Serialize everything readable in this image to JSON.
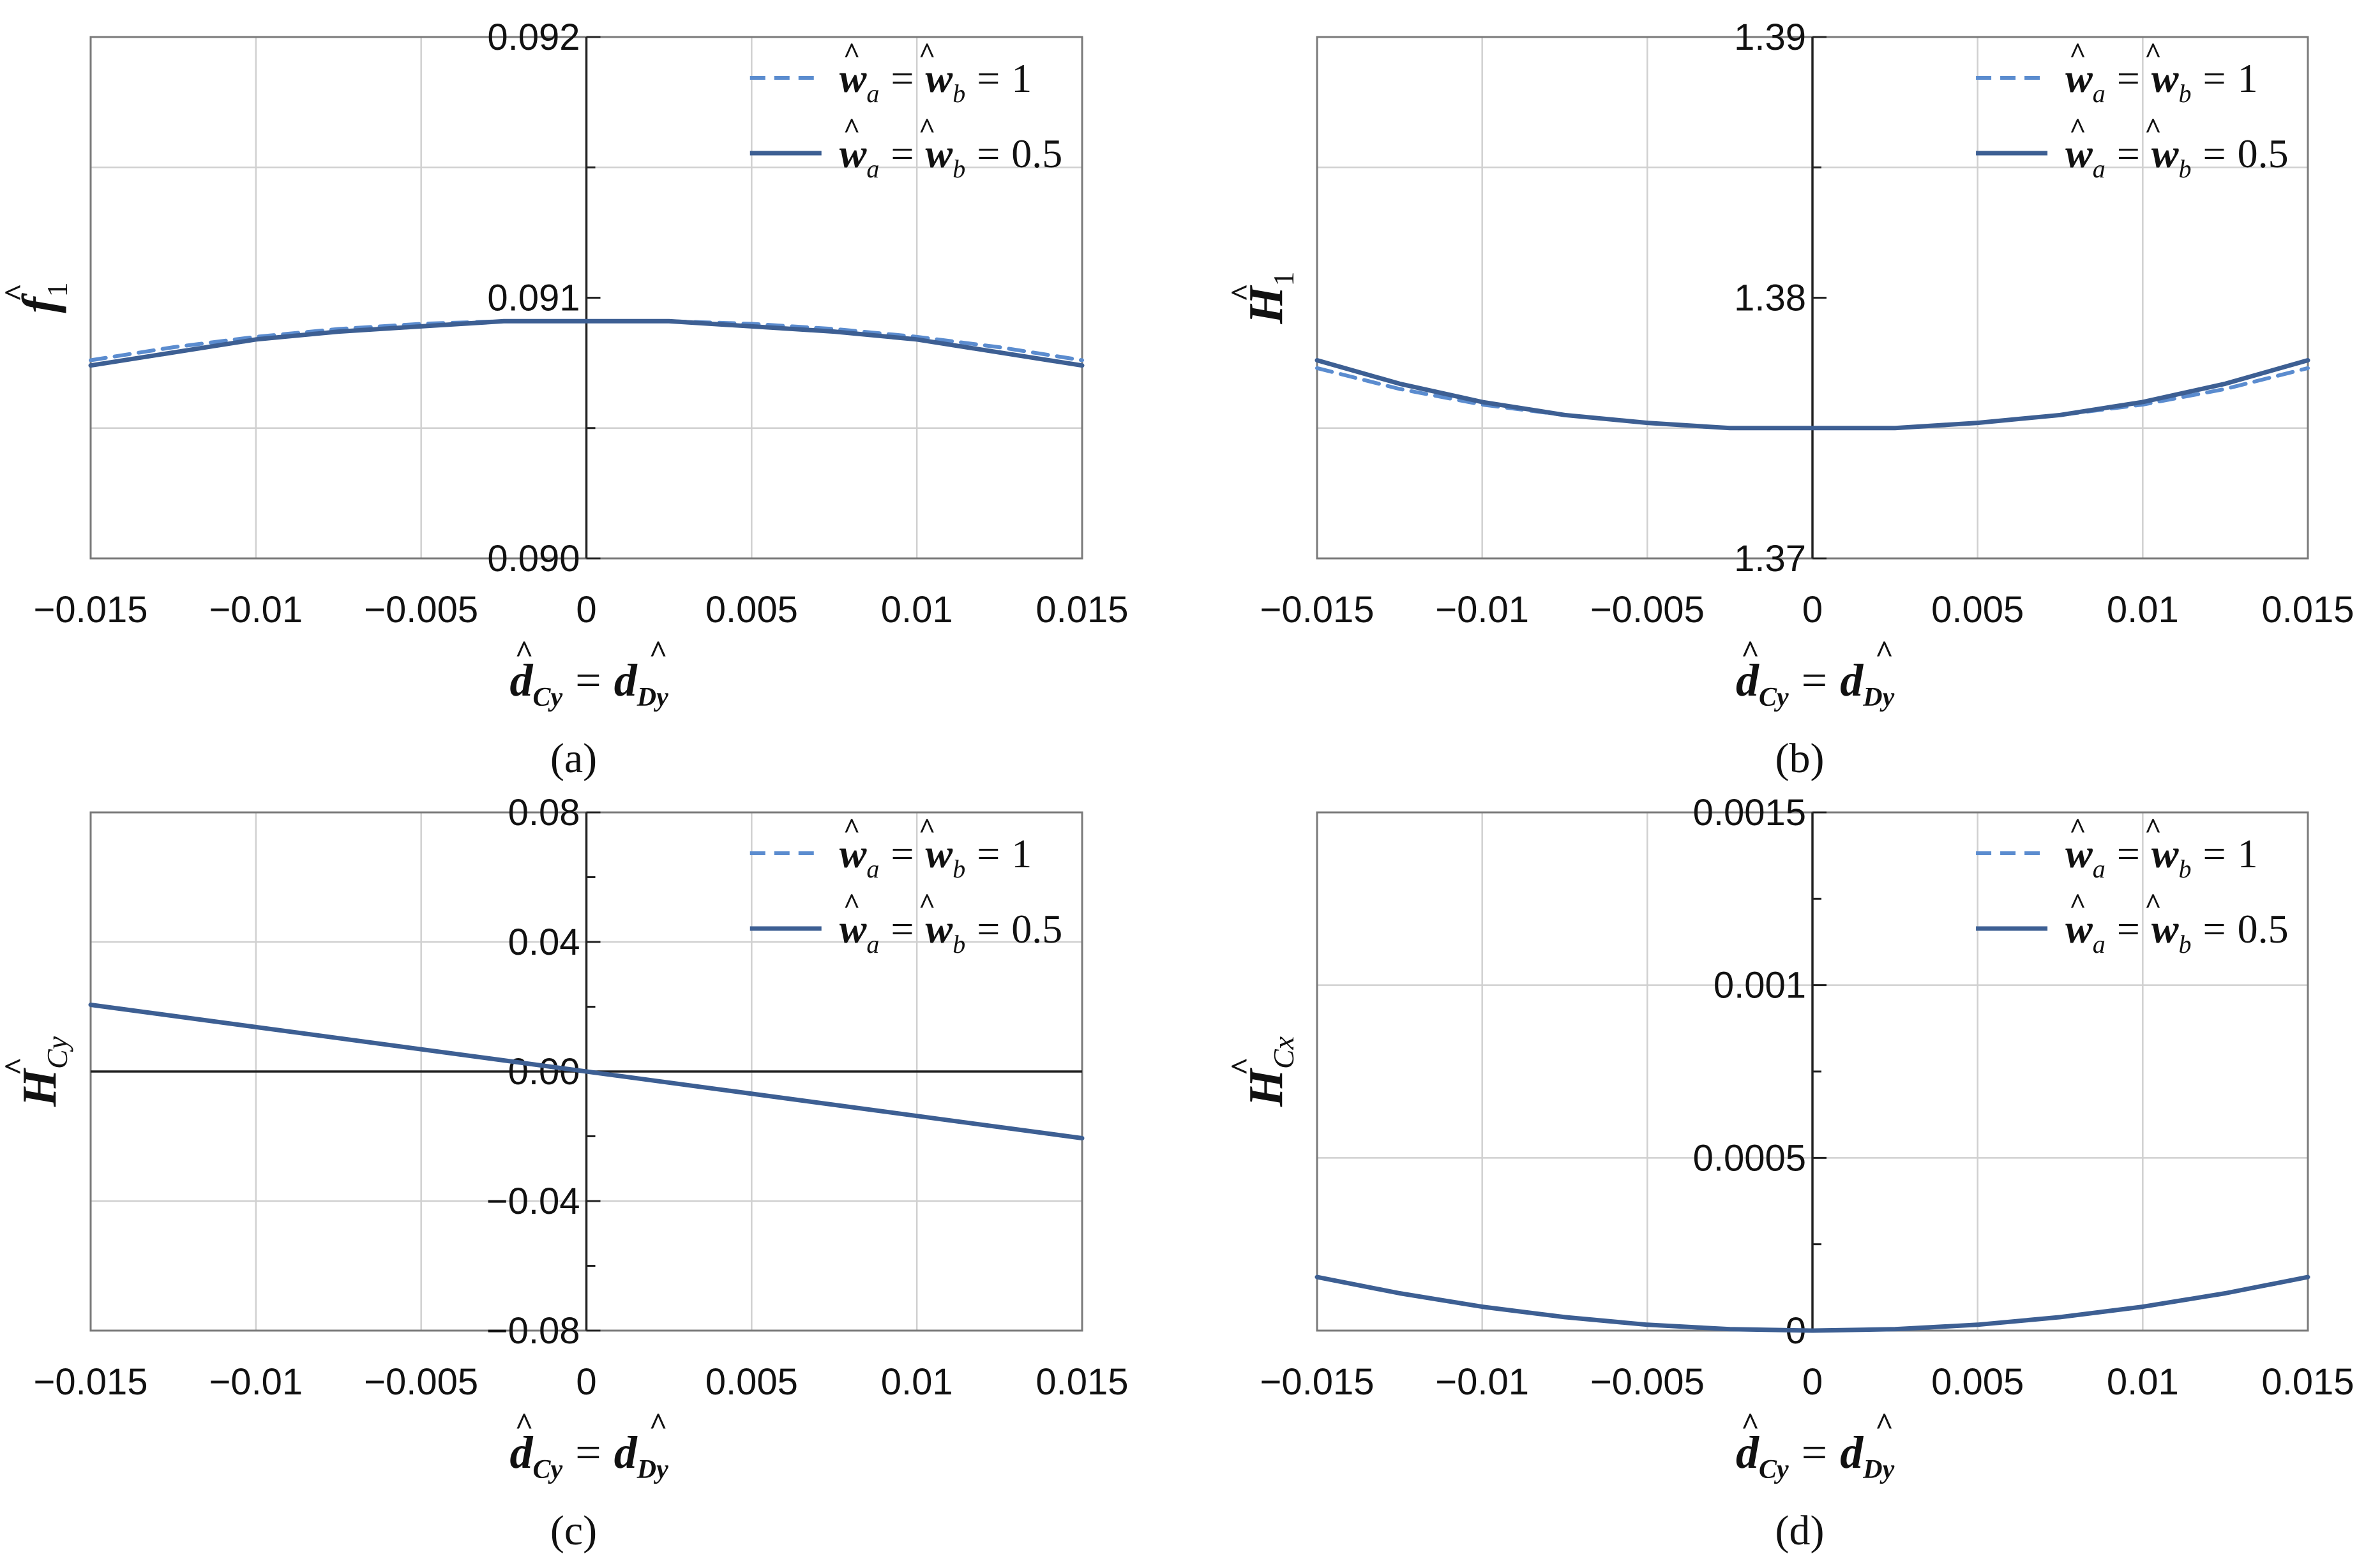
{
  "figure": {
    "legend_symbols": {
      "hat": "^",
      "eq": "="
    },
    "xlabel": {
      "main": "d",
      "sub1": "Cy",
      "sub2": "Dy"
    }
  },
  "chart_data": [
    {
      "type": "line",
      "panel": "a",
      "caption": "(a)",
      "ylabel": {
        "main": "f",
        "sub": "1"
      },
      "xlim": [
        -0.015,
        0.015
      ],
      "ylim": [
        0.09,
        0.092
      ],
      "xticks": [
        -0.015,
        -0.01,
        -0.005,
        0,
        0.005,
        0.01,
        0.015
      ],
      "xtick_labels": [
        "−0.015",
        "−0.01",
        "−0.005",
        "0",
        "0.005",
        "0.01",
        "0.015"
      ],
      "yticks": [
        0.09,
        0.091,
        0.092
      ],
      "ytick_labels": [
        "0.090",
        "0.091",
        "0.092"
      ],
      "ygrid": [
        0.0905,
        0.0915
      ],
      "legend": [
        {
          "name": "ŵa = ŵb = 1",
          "lhs": "w",
          "sa": "a",
          "rhs": "w",
          "sb": "b",
          "val": "1",
          "style": "dashed"
        },
        {
          "name": "ŵa = ŵb = 0.5",
          "lhs": "w",
          "sa": "a",
          "rhs": "w",
          "sb": "b",
          "val": "0.5",
          "style": "solid"
        }
      ],
      "series": [
        {
          "name": "ŵa = ŵb = 1",
          "style": "dashed",
          "x": [
            -0.015,
            -0.0125,
            -0.01,
            -0.0075,
            -0.005,
            -0.0025,
            0,
            0.0025,
            0.005,
            0.0075,
            0.01,
            0.0125,
            0.015
          ],
          "y": [
            0.09076,
            0.09081,
            0.09085,
            0.09088,
            0.0909,
            0.09091,
            0.09091,
            0.09091,
            0.0909,
            0.09088,
            0.09085,
            0.09081,
            0.09076
          ]
        },
        {
          "name": "ŵa = ŵb = 0.5",
          "style": "solid",
          "x": [
            -0.015,
            -0.0125,
            -0.01,
            -0.0075,
            -0.005,
            -0.0025,
            0,
            0.0025,
            0.005,
            0.0075,
            0.01,
            0.0125,
            0.015
          ],
          "y": [
            0.09074,
            0.09079,
            0.09084,
            0.09087,
            0.09089,
            0.09091,
            0.09091,
            0.09091,
            0.09089,
            0.09087,
            0.09084,
            0.09079,
            0.09074
          ]
        }
      ]
    },
    {
      "type": "line",
      "panel": "b",
      "caption": "(b)",
      "ylabel": {
        "main": "H",
        "sub": "1"
      },
      "xlim": [
        -0.015,
        0.015
      ],
      "ylim": [
        1.37,
        1.39
      ],
      "xticks": [
        -0.015,
        -0.01,
        -0.005,
        0,
        0.005,
        0.01,
        0.015
      ],
      "xtick_labels": [
        "−0.015",
        "−0.01",
        "−0.005",
        "0",
        "0.005",
        "0.01",
        "0.015"
      ],
      "yticks": [
        1.37,
        1.38,
        1.39
      ],
      "ytick_labels": [
        "1.37",
        "1.38",
        "1.39"
      ],
      "ygrid": [
        1.375,
        1.385
      ],
      "legend": [
        {
          "name": "ŵa = ŵb = 1",
          "lhs": "w",
          "sa": "a",
          "rhs": "w",
          "sb": "b",
          "val": "1",
          "style": "dashed"
        },
        {
          "name": "ŵa = ŵb = 0.5",
          "lhs": "w",
          "sa": "a",
          "rhs": "w",
          "sb": "b",
          "val": "0.5",
          "style": "solid"
        }
      ],
      "series": [
        {
          "name": "ŵa = ŵb = 1",
          "style": "dashed",
          "x": [
            -0.015,
            -0.0125,
            -0.01,
            -0.0075,
            -0.005,
            -0.0025,
            0,
            0.0025,
            0.005,
            0.0075,
            0.01,
            0.0125,
            0.015
          ],
          "y": [
            1.3773,
            1.3765,
            1.3759,
            1.3755,
            1.3752,
            1.375,
            1.375,
            1.375,
            1.3752,
            1.3755,
            1.3759,
            1.3765,
            1.3773
          ]
        },
        {
          "name": "ŵa = ŵb = 0.5",
          "style": "solid",
          "x": [
            -0.015,
            -0.0125,
            -0.01,
            -0.0075,
            -0.005,
            -0.0025,
            0,
            0.0025,
            0.005,
            0.0075,
            0.01,
            0.0125,
            0.015
          ],
          "y": [
            1.3776,
            1.3767,
            1.376,
            1.3755,
            1.3752,
            1.375,
            1.375,
            1.375,
            1.3752,
            1.3755,
            1.376,
            1.3767,
            1.3776
          ]
        }
      ]
    },
    {
      "type": "line",
      "panel": "c",
      "caption": "(c)",
      "ylabel": {
        "main": "H",
        "sub": "Cy"
      },
      "xlim": [
        -0.015,
        0.015
      ],
      "ylim": [
        -0.08,
        0.08
      ],
      "xticks": [
        -0.015,
        -0.01,
        -0.005,
        0,
        0.005,
        0.01,
        0.015
      ],
      "xtick_labels": [
        "−0.015",
        "−0.01",
        "−0.005",
        "0",
        "0.005",
        "0.01",
        "0.015"
      ],
      "yticks": [
        -0.08,
        -0.04,
        0,
        0.04,
        0.08
      ],
      "ytick_labels": [
        "−0.08",
        "−0.04",
        "0.00",
        "0.04",
        "0.08"
      ],
      "ygrid": [
        -0.04,
        0.04
      ],
      "legend": [
        {
          "name": "ŵa = ŵb = 1",
          "lhs": "w",
          "sa": "a",
          "rhs": "w",
          "sb": "b",
          "val": "1",
          "style": "dashed"
        },
        {
          "name": "ŵa = ŵb = 0.5",
          "lhs": "w",
          "sa": "a",
          "rhs": "w",
          "sb": "b",
          "val": "0.5",
          "style": "solid"
        }
      ],
      "series": [
        {
          "name": "ŵa = ŵb = 1",
          "style": "dashed",
          "x": [
            -0.015,
            0,
            0.015
          ],
          "y": [
            0.0206,
            0,
            -0.0206
          ]
        },
        {
          "name": "ŵa = ŵb = 0.5",
          "style": "solid",
          "x": [
            -0.015,
            0,
            0.015
          ],
          "y": [
            0.0206,
            0,
            -0.0206
          ]
        }
      ]
    },
    {
      "type": "line",
      "panel": "d",
      "caption": "(d)",
      "ylabel": {
        "main": "H",
        "sub": "Cx"
      },
      "xlim": [
        -0.015,
        0.015
      ],
      "ylim": [
        0,
        0.0015
      ],
      "xticks": [
        -0.015,
        -0.01,
        -0.005,
        0,
        0.005,
        0.01,
        0.015
      ],
      "xtick_labels": [
        "−0.015",
        "−0.01",
        "−0.005",
        "0",
        "0.005",
        "0.01",
        "0.015"
      ],
      "yticks": [
        0,
        0.0005,
        0.001,
        0.0015
      ],
      "ytick_labels": [
        "0",
        "0.0005",
        "0.001",
        "0.0015"
      ],
      "ygrid": [
        0.0005,
        0.001
      ],
      "legend": [
        {
          "name": "ŵa = ŵb = 1",
          "lhs": "w",
          "sa": "a",
          "rhs": "w",
          "sb": "b",
          "val": "1",
          "style": "dashed"
        },
        {
          "name": "ŵa = ŵb = 0.5",
          "lhs": "w",
          "sa": "a",
          "rhs": "w",
          "sb": "b",
          "val": "0.5",
          "style": "solid"
        }
      ],
      "series": [
        {
          "name": "ŵa = ŵb = 1",
          "style": "dashed",
          "x": [
            -0.015,
            -0.0125,
            -0.01,
            -0.0075,
            -0.005,
            -0.0025,
            0,
            0.0025,
            0.005,
            0.0075,
            0.01,
            0.0125,
            0.015
          ],
          "y": [
            0.000155,
            0.000108,
            6.9e-05,
            3.9e-05,
            1.7e-05,
            4e-06,
            0,
            4e-06,
            1.7e-05,
            3.9e-05,
            6.9e-05,
            0.000108,
            0.000155
          ]
        },
        {
          "name": "ŵa = ŵb = 0.5",
          "style": "solid",
          "x": [
            -0.015,
            -0.0125,
            -0.01,
            -0.0075,
            -0.005,
            -0.0025,
            0,
            0.0025,
            0.005,
            0.0075,
            0.01,
            0.0125,
            0.015
          ],
          "y": [
            0.000155,
            0.000108,
            6.9e-05,
            3.9e-05,
            1.7e-05,
            4e-06,
            0,
            4e-06,
            1.7e-05,
            3.9e-05,
            6.9e-05,
            0.000108,
            0.000155
          ]
        }
      ]
    }
  ]
}
